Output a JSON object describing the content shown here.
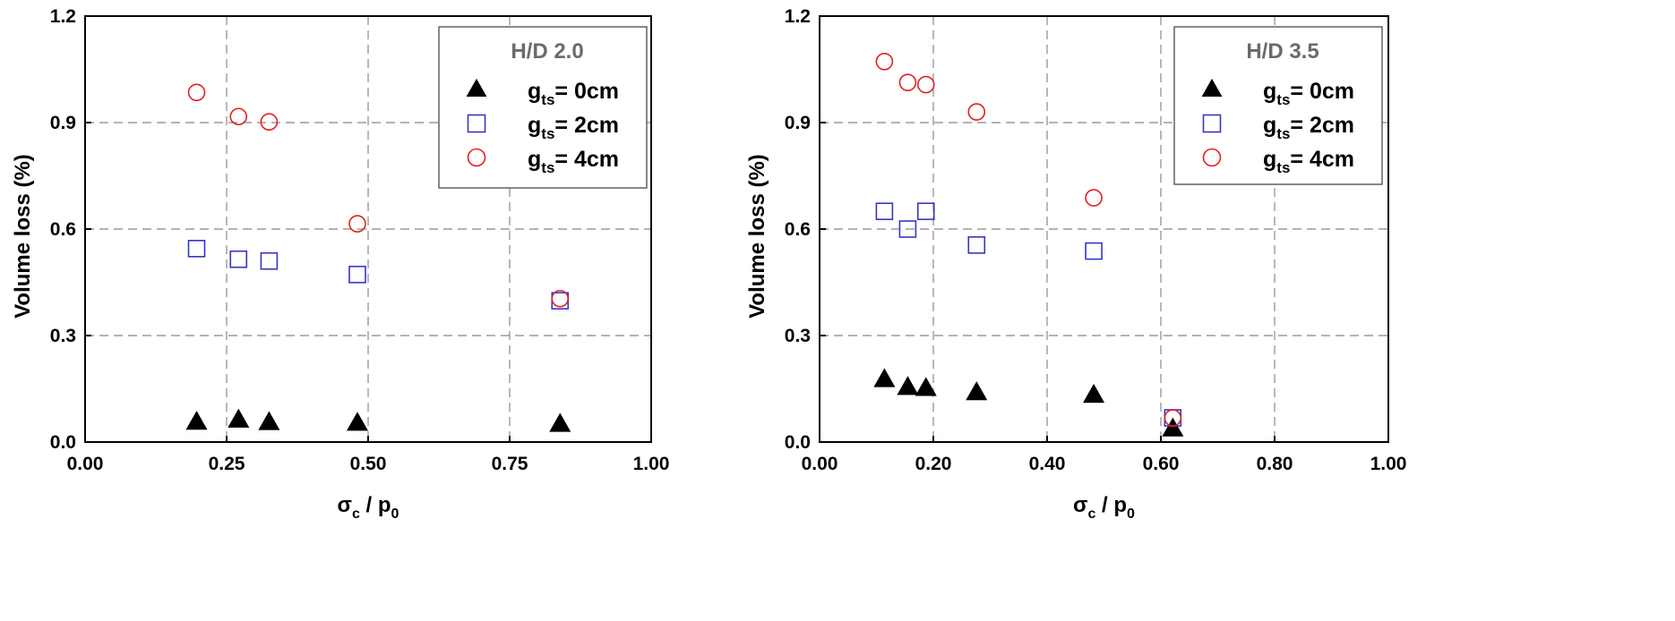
{
  "chart_data": [
    {
      "type": "scatter",
      "legend_title": "H/D 2.0",
      "legend_placement": "top-right",
      "xlabel": {
        "main": "σ",
        "sub1": "c",
        "mid": " / p",
        "sub2": "0"
      },
      "ylabel": "Volume loss (%)",
      "xlim": [
        0.0,
        1.0
      ],
      "ylim": [
        0.0,
        1.2
      ],
      "xticks": [
        0.0,
        0.25,
        0.5,
        0.75,
        1.0
      ],
      "xtick_labels": [
        "0.00",
        "0.25",
        "0.50",
        "0.75",
        "1.00"
      ],
      "yticks": [
        0.0,
        0.3,
        0.6,
        0.9,
        1.2
      ],
      "ytick_labels": [
        "0.0",
        "0.3",
        "0.6",
        "0.9",
        "1.2"
      ],
      "grid": true,
      "series": [
        {
          "name": {
            "main": "g",
            "sub": "ts",
            "rest": "= 0cm"
          },
          "marker": "triangle-filled",
          "color": "#000000",
          "x": [
            0.197,
            0.271,
            0.325,
            0.481,
            0.839
          ],
          "y": [
            0.056,
            0.062,
            0.055,
            0.053,
            0.05
          ]
        },
        {
          "name": {
            "main": "g",
            "sub": "ts",
            "rest": "= 2cm"
          },
          "marker": "square-open",
          "color": "#3535c8",
          "x": [
            0.197,
            0.271,
            0.325,
            0.481,
            0.839
          ],
          "y": [
            0.545,
            0.515,
            0.51,
            0.472,
            0.398
          ]
        },
        {
          "name": {
            "main": "g",
            "sub": "ts",
            "rest": "= 4cm"
          },
          "marker": "circle-open",
          "color": "#e02020",
          "x": [
            0.197,
            0.271,
            0.325,
            0.481,
            0.839
          ],
          "y": [
            0.985,
            0.917,
            0.902,
            0.615,
            0.404
          ]
        }
      ]
    },
    {
      "type": "scatter",
      "legend_title": "H/D 3.5",
      "legend_placement": "top-right",
      "xlabel": {
        "main": "σ",
        "sub1": "c",
        "mid": " / p",
        "sub2": "0"
      },
      "ylabel": "Volume loss (%)",
      "xlim": [
        0.0,
        1.0
      ],
      "ylim": [
        0.0,
        1.2
      ],
      "xticks": [
        0.0,
        0.2,
        0.4,
        0.6,
        0.8,
        1.0
      ],
      "xtick_labels": [
        "0.00",
        "0.20",
        "0.40",
        "0.60",
        "0.80",
        "1.00"
      ],
      "yticks": [
        0.0,
        0.3,
        0.6,
        0.9,
        1.2
      ],
      "ytick_labels": [
        "0.0",
        "0.3",
        "0.6",
        "0.9",
        "1.2"
      ],
      "grid": true,
      "series": [
        {
          "name": {
            "main": "g",
            "sub": "ts",
            "rest": "= 0cm"
          },
          "marker": "triangle-filled",
          "color": "#000000",
          "x": [
            0.114,
            0.155,
            0.187,
            0.276,
            0.482,
            0.621
          ],
          "y": [
            0.176,
            0.154,
            0.151,
            0.139,
            0.132,
            0.037
          ]
        },
        {
          "name": {
            "main": "g",
            "sub": "ts",
            "rest": "= 2cm"
          },
          "marker": "square-open",
          "color": "#3535c8",
          "x": [
            0.114,
            0.155,
            0.187,
            0.276,
            0.482,
            0.621
          ],
          "y": [
            0.65,
            0.6,
            0.65,
            0.555,
            0.538,
            0.068
          ]
        },
        {
          "name": {
            "main": "g",
            "sub": "ts",
            "rest": "= 4cm"
          },
          "marker": "circle-open",
          "color": "#e02020",
          "x": [
            0.114,
            0.155,
            0.187,
            0.276,
            0.482,
            0.621
          ],
          "y": [
            1.072,
            1.013,
            1.007,
            0.93,
            0.688,
            0.068
          ]
        }
      ]
    }
  ]
}
